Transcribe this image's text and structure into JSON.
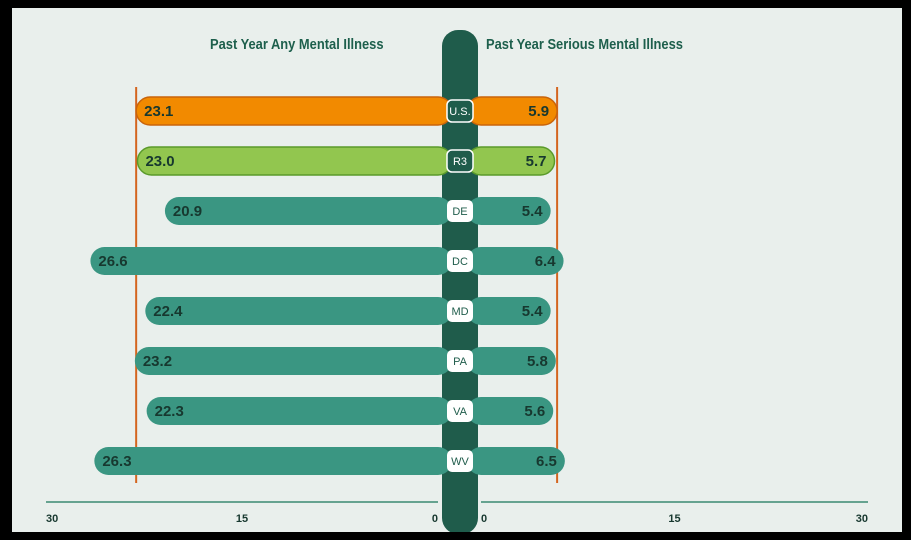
{
  "chart_data": [
    {
      "type": "bar",
      "title": "Past Year Any Mental Illness",
      "categories": [
        "U.S.",
        "R3",
        "DE",
        "DC",
        "MD",
        "PA",
        "VA",
        "WV"
      ],
      "values": [
        23.1,
        23.0,
        20.9,
        26.6,
        22.4,
        23.2,
        22.3,
        26.3
      ],
      "xlim": [
        0,
        30
      ],
      "x_ticks": [
        "30",
        "15",
        "0"
      ],
      "direction": "leftward",
      "reference_line": 23.1
    },
    {
      "type": "bar",
      "title": "Past Year Serious Mental Illness",
      "categories": [
        "U.S.",
        "R3",
        "DE",
        "DC",
        "MD",
        "PA",
        "VA",
        "WV"
      ],
      "values": [
        5.9,
        5.7,
        5.4,
        6.4,
        5.4,
        5.8,
        5.6,
        6.5
      ],
      "xlim": [
        0,
        30
      ],
      "x_ticks": [
        "0",
        "15",
        "30"
      ],
      "direction": "rightward",
      "reference_line": 5.9
    }
  ],
  "colors": {
    "background": "#e9efec",
    "us_bar": "#f28a00",
    "us_bar_stroke": "#c9640a",
    "region_bar": "#92c64f",
    "region_bar_stroke": "#5a9a2a",
    "state_bar": "#3a9682",
    "center_band": "#1f5c4b",
    "reference_line": "#d4651f",
    "axis_line": "#3a8a72",
    "value_text": "#17382f"
  }
}
